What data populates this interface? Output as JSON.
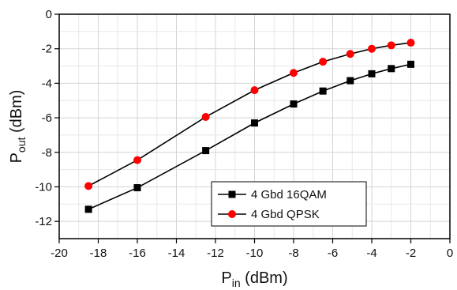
{
  "chart_data": {
    "type": "line",
    "title": "",
    "xlabel": {
      "main": "P",
      "sub": "in",
      "unit": " (dBm)"
    },
    "ylabel": {
      "main": "P",
      "sub": "out",
      "unit": " (dBm)"
    },
    "xlim": [
      -20,
      0
    ],
    "ylim": [
      -13,
      0
    ],
    "xticks": [
      -20,
      -18,
      -16,
      -14,
      -12,
      -10,
      -8,
      -6,
      -4,
      -2,
      0
    ],
    "yticks": [
      0,
      -2,
      -4,
      -6,
      -8,
      -10,
      -12
    ],
    "grid": true,
    "legend_position": "bottom-right",
    "series": [
      {
        "name": "4 Gbd 16QAM",
        "color": "#000000",
        "marker": "square",
        "x": [
          -18.5,
          -16,
          -12.5,
          -10,
          -8,
          -6.5,
          -5.1,
          -4,
          -3,
          -2
        ],
        "y": [
          -11.3,
          -10.05,
          -7.9,
          -6.3,
          -5.2,
          -4.45,
          -3.85,
          -3.45,
          -3.15,
          -2.9
        ]
      },
      {
        "name": "4 Gbd QPSK",
        "color": "#ff0000",
        "marker": "circle",
        "x": [
          -18.5,
          -16,
          -12.5,
          -10,
          -8,
          -6.5,
          -5.1,
          -4,
          -3,
          -2
        ],
        "y": [
          -9.95,
          -8.45,
          -5.95,
          -4.4,
          -3.4,
          -2.75,
          -2.3,
          -2.0,
          -1.8,
          -1.65
        ]
      }
    ]
  }
}
